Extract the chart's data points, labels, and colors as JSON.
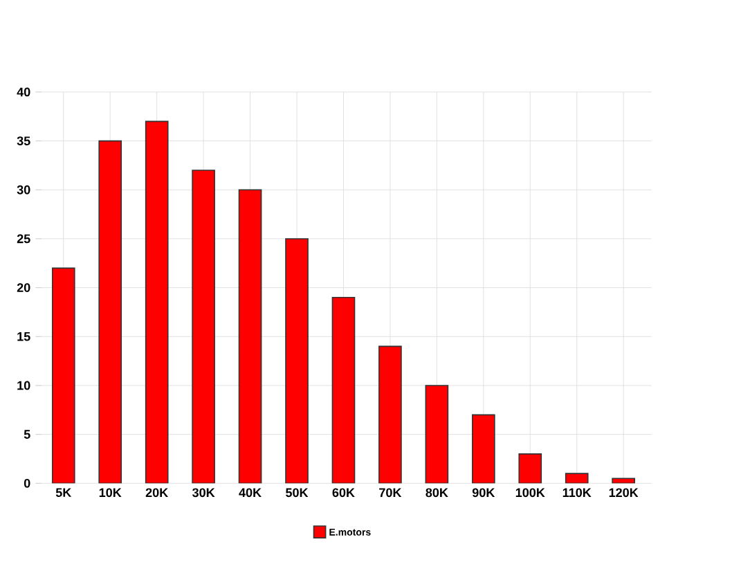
{
  "chart_data": {
    "type": "bar",
    "categories": [
      "5K",
      "10K",
      "20K",
      "30K",
      "40K",
      "50K",
      "60K",
      "70K",
      "80K",
      "90K",
      "100K",
      "110K",
      "120K"
    ],
    "series": [
      {
        "name": "E.motors",
        "color": "#ff0000",
        "values": [
          22,
          35,
          37,
          32,
          30,
          25,
          19,
          14,
          10,
          7,
          3,
          1,
          0.5
        ]
      }
    ],
    "ylim": [
      0,
      40
    ],
    "yticks": [
      0,
      5,
      10,
      15,
      20,
      25,
      30,
      35,
      40
    ],
    "grid": true,
    "legend": "bottom"
  }
}
